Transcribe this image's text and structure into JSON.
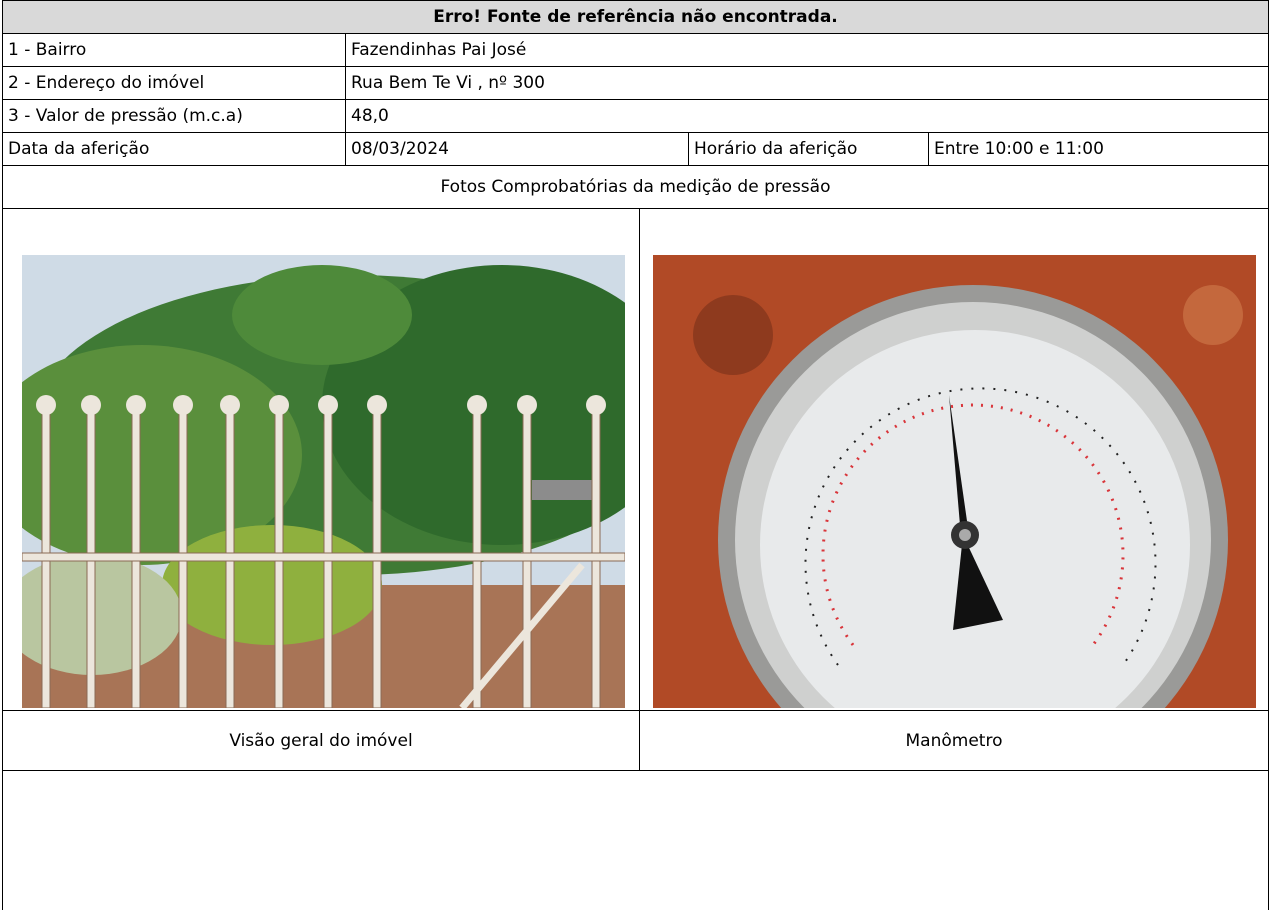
{
  "header": {
    "title": "Erro! Fonte de referência não encontrada."
  },
  "table": {
    "rows": [
      [
        "1 - Bairro",
        "Fazendinhas Pai José"
      ],
      [
        "2 - Endereço do imóvel",
        "Rua Bem Te Vi , nº 300"
      ],
      [
        "3 - Valor de pressão (m.c.a)",
        "48,0"
      ],
      [
        "Data da aferição",
        "08/03/2024",
        "Horário da aferição",
        "Entre 10:00 e 11:00"
      ]
    ]
  },
  "photos": {
    "heading": "Fotos Comprobatórias da medição de pressão",
    "items": [
      {
        "caption": "Visão geral do imóvel"
      },
      {
        "caption": "Manômetro"
      }
    ]
  }
}
